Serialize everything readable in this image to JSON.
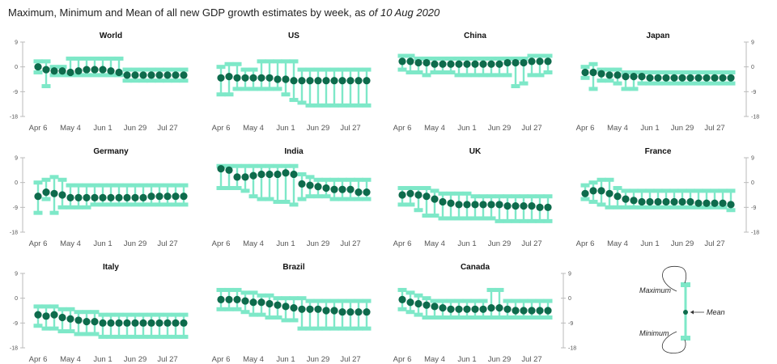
{
  "title": {
    "text": "Maximum, Minimum and Mean of all new GDP growth estimates by week, as",
    "date": "of 10 Aug 2020"
  },
  "colors": {
    "mean": "#0e6b4c",
    "range": "#7ee8c8",
    "axis": "#bbbbbb"
  },
  "axis": {
    "y_ticks": [
      "9",
      "0",
      "-9",
      "-18"
    ],
    "y_values": [
      9,
      0,
      -9,
      -18
    ],
    "x_ticks": [
      "Apr 6",
      "May 4",
      "Jun 1",
      "Jun 29",
      "Jul 27"
    ],
    "x_tick_weeks": [
      0,
      4,
      8,
      12,
      16
    ]
  },
  "legend": {
    "max": "Maximum",
    "min": "Minimum",
    "mean": "Mean"
  },
  "chart_data": [
    {
      "type": "range",
      "title": "World",
      "x": [
        0,
        1,
        2,
        3,
        4,
        5,
        6,
        7,
        8,
        9,
        10,
        11,
        12,
        13,
        14,
        15,
        16,
        17,
        18
      ],
      "ylim": [
        -18,
        9
      ],
      "mean": [
        0,
        -1,
        -1.5,
        -1.5,
        -2,
        -1.5,
        -1,
        -1,
        -1,
        -1.5,
        -2,
        -3,
        -3,
        -3,
        -3,
        -3,
        -3,
        -3,
        -3
      ],
      "max": [
        2,
        2,
        0,
        0,
        3,
        3,
        3,
        3,
        3,
        3,
        3,
        -1,
        -1,
        -1,
        -1,
        -1,
        -1,
        -1,
        -1
      ],
      "min": [
        -2,
        -7,
        -3,
        -3,
        -3,
        -3,
        -3,
        -3,
        -3,
        -3,
        -3,
        -5,
        -5,
        -5,
        -5,
        -5,
        -5,
        -5,
        -5
      ]
    },
    {
      "type": "range",
      "title": "US",
      "x": [
        0,
        1,
        2,
        3,
        4,
        5,
        6,
        7,
        8,
        9,
        10,
        11,
        12,
        13,
        14,
        15,
        16,
        17,
        18
      ],
      "ylim": [
        -18,
        9
      ],
      "mean": [
        -4,
        -3.5,
        -4,
        -4,
        -4,
        -4,
        -4,
        -4.5,
        -4.5,
        -5,
        -5,
        -5,
        -5,
        -5,
        -5,
        -5,
        -5,
        -5,
        -5
      ],
      "max": [
        0,
        1,
        1,
        -1,
        -1,
        2,
        2,
        2,
        2,
        2,
        -1,
        -1,
        -1,
        -1,
        -1,
        -1,
        -1,
        -1,
        -1
      ],
      "min": [
        -10,
        -10,
        -8,
        -8,
        -8,
        -8,
        -8,
        -8,
        -10,
        -12,
        -13,
        -14,
        -14,
        -14,
        -14,
        -14,
        -14,
        -14,
        -14
      ]
    },
    {
      "type": "range",
      "title": "China",
      "x": [
        0,
        1,
        2,
        3,
        4,
        5,
        6,
        7,
        8,
        9,
        10,
        11,
        12,
        13,
        14,
        15,
        16,
        17,
        18
      ],
      "ylim": [
        -18,
        9
      ],
      "mean": [
        2,
        2,
        1.5,
        1.5,
        1,
        1,
        1,
        1,
        1,
        1,
        1,
        1,
        1,
        1.5,
        1.5,
        1.5,
        2,
        2,
        2
      ],
      "max": [
        4,
        4,
        3,
        3,
        3,
        3,
        3,
        3,
        3,
        3,
        3,
        3,
        3,
        3,
        3,
        3,
        4,
        4,
        4
      ],
      "min": [
        -1,
        -2,
        -2,
        -3,
        -2,
        -2,
        -2,
        -3,
        -3,
        -3,
        -3,
        -3,
        -3,
        -3,
        -7,
        -6,
        -3,
        -3,
        -2
      ]
    },
    {
      "type": "range",
      "title": "Japan",
      "x": [
        0,
        1,
        2,
        3,
        4,
        5,
        6,
        7,
        8,
        9,
        10,
        11,
        12,
        13,
        14,
        15,
        16,
        17,
        18
      ],
      "ylim": [
        -18,
        9
      ],
      "mean": [
        -2,
        -2,
        -2.5,
        -3,
        -3,
        -3.5,
        -3.5,
        -3.5,
        -4,
        -4,
        -4,
        -4,
        -4,
        -4,
        -4,
        -4,
        -4,
        -4,
        -4
      ],
      "max": [
        0,
        1,
        -1,
        -1,
        -1,
        -2,
        -2,
        -2,
        -2,
        -2,
        -2,
        -2,
        -2,
        -2,
        -2,
        -2,
        -2,
        -2,
        -2
      ],
      "min": [
        -4,
        -8,
        -5,
        -5,
        -6,
        -8,
        -8,
        -6,
        -6,
        -6,
        -6,
        -6,
        -6,
        -6,
        -6,
        -6,
        -6,
        -6,
        -6
      ]
    },
    {
      "type": "range",
      "title": "Germany",
      "x": [
        0,
        1,
        2,
        3,
        4,
        5,
        6,
        7,
        8,
        9,
        10,
        11,
        12,
        13,
        14,
        15,
        16,
        17,
        18
      ],
      "ylim": [
        -18,
        9
      ],
      "mean": [
        -5,
        -3.5,
        -4,
        -4.5,
        -5.5,
        -5.5,
        -5.5,
        -5.5,
        -5.5,
        -5.5,
        -5.5,
        -5.5,
        -5.5,
        -5.5,
        -5,
        -5,
        -5,
        -5,
        -5
      ],
      "max": [
        0,
        1,
        2,
        1,
        -1,
        -1,
        -1,
        -1,
        -1,
        -1,
        -1,
        -1,
        -1,
        -1,
        -1,
        -1,
        -1,
        -1,
        -1
      ],
      "min": [
        -11,
        -6,
        -11,
        -9,
        -9,
        -9,
        -9,
        -8,
        -8,
        -8,
        -8,
        -8,
        -8,
        -8,
        -8,
        -8,
        -8,
        -8,
        -8
      ]
    },
    {
      "type": "range",
      "title": "India",
      "x": [
        0,
        1,
        2,
        3,
        4,
        5,
        6,
        7,
        8,
        9,
        10,
        11,
        12,
        13,
        14,
        15,
        16,
        17,
        18
      ],
      "ylim": [
        -18,
        9
      ],
      "mean": [
        5,
        4.5,
        2,
        2,
        2.5,
        3,
        3,
        3,
        3.5,
        3,
        -0.5,
        -1,
        -1.5,
        -2,
        -2.5,
        -2.5,
        -2.5,
        -3.5,
        -3.5
      ],
      "max": [
        6,
        6,
        6,
        6,
        6,
        6,
        6,
        6,
        6,
        6,
        3,
        2,
        1,
        1,
        1,
        1,
        1,
        1,
        1
      ],
      "min": [
        -2,
        -2,
        -2,
        -3,
        -5,
        -6,
        -6,
        -7,
        -7,
        -8,
        -6,
        -5,
        -5,
        -5,
        -6,
        -6,
        -6,
        -6,
        -6
      ]
    },
    {
      "type": "range",
      "title": "UK",
      "x": [
        0,
        1,
        2,
        3,
        4,
        5,
        6,
        7,
        8,
        9,
        10,
        11,
        12,
        13,
        14,
        15,
        16,
        17,
        18
      ],
      "ylim": [
        -18,
        9
      ],
      "mean": [
        -4.5,
        -4,
        -4.5,
        -5,
        -6,
        -7,
        -7.5,
        -8,
        -8,
        -8,
        -8,
        -8,
        -8,
        -8.5,
        -8.5,
        -8.5,
        -8.5,
        -9,
        -9
      ],
      "max": [
        -2,
        -2,
        -2,
        -2,
        -3,
        -4,
        -4,
        -4,
        -4,
        -5,
        -5,
        -5,
        -5,
        -5,
        -5,
        -5,
        -5,
        -5,
        -5
      ],
      "min": [
        -8,
        -8,
        -10,
        -12,
        -12,
        -13,
        -13,
        -13,
        -13,
        -13,
        -13,
        -13,
        -14,
        -14,
        -14,
        -14,
        -14,
        -14,
        -14
      ]
    },
    {
      "type": "range",
      "title": "France",
      "x": [
        0,
        1,
        2,
        3,
        4,
        5,
        6,
        7,
        8,
        9,
        10,
        11,
        12,
        13,
        14,
        15,
        16,
        17,
        18
      ],
      "ylim": [
        -18,
        9
      ],
      "mean": [
        -4,
        -3,
        -3,
        -4,
        -5,
        -6,
        -6.5,
        -7,
        -7,
        -7,
        -7,
        -7,
        -7,
        -7,
        -7.5,
        -7.5,
        -7.5,
        -7.5,
        -8
      ],
      "max": [
        -1,
        0,
        1,
        1,
        -2,
        -3,
        -3,
        -3,
        -3,
        -3,
        -3,
        -3,
        -3,
        -3,
        -3,
        -3,
        -3,
        -3,
        -3
      ],
      "min": [
        -6,
        -7,
        -8,
        -9,
        -9,
        -9,
        -9,
        -9,
        -9,
        -9,
        -9,
        -9,
        -9,
        -9,
        -9,
        -9,
        -9,
        -9,
        -10
      ]
    },
    {
      "type": "range",
      "title": "Italy",
      "x": [
        0,
        1,
        2,
        3,
        4,
        5,
        6,
        7,
        8,
        9,
        10,
        11,
        12,
        13,
        14,
        15,
        16,
        17,
        18
      ],
      "ylim": [
        -18,
        9
      ],
      "mean": [
        -6,
        -6.5,
        -6,
        -7,
        -7.5,
        -8,
        -8.5,
        -8.5,
        -9,
        -9,
        -9,
        -9,
        -9,
        -9,
        -9,
        -9,
        -9,
        -9,
        -9
      ],
      "max": [
        -3,
        -3,
        -3,
        -4,
        -4,
        -5,
        -5,
        -5,
        -6,
        -6,
        -6,
        -6,
        -6,
        -6,
        -6,
        -6,
        -6,
        -6,
        -6
      ],
      "min": [
        -10,
        -11,
        -11,
        -12,
        -12,
        -13,
        -13,
        -13,
        -14,
        -14,
        -14,
        -14,
        -14,
        -14,
        -14,
        -14,
        -14,
        -14,
        -14
      ]
    },
    {
      "type": "range",
      "title": "Brazil",
      "x": [
        0,
        1,
        2,
        3,
        4,
        5,
        6,
        7,
        8,
        9,
        10,
        11,
        12,
        13,
        14,
        15,
        16,
        17,
        18
      ],
      "ylim": [
        -18,
        9
      ],
      "mean": [
        -0.5,
        -0.5,
        -0.5,
        -1,
        -1.5,
        -1.5,
        -2,
        -2.5,
        -3,
        -3.5,
        -4,
        -4,
        -4,
        -4.5,
        -4.5,
        -5,
        -5,
        -5,
        -5
      ],
      "max": [
        3,
        3,
        3,
        2,
        2,
        1,
        1,
        0,
        0,
        0,
        0,
        -1,
        -1,
        -1,
        -1,
        -1,
        -1,
        -1,
        -1
      ],
      "min": [
        -4,
        -4,
        -4,
        -5,
        -6,
        -6,
        -7,
        -7,
        -8,
        -8,
        -11,
        -11,
        -11,
        -11,
        -11,
        -11,
        -11,
        -11,
        -11
      ]
    },
    {
      "type": "range",
      "title": "Canada",
      "x": [
        0,
        1,
        2,
        3,
        4,
        5,
        6,
        7,
        8,
        9,
        10,
        11,
        12,
        13,
        14,
        15,
        16,
        17,
        18
      ],
      "ylim": [
        -18,
        9
      ],
      "mean": [
        -0.5,
        -1.5,
        -2,
        -2.5,
        -3,
        -3.5,
        -4,
        -4,
        -4,
        -4,
        -4,
        -3.5,
        -3.5,
        -4,
        -4.5,
        -4.5,
        -4.5,
        -4.5,
        -4.5
      ],
      "max": [
        3,
        2,
        1,
        0,
        -1,
        -1,
        -1,
        -1,
        -1,
        -1,
        -1,
        3,
        3,
        -1,
        -1,
        -1,
        -1,
        -1,
        -1
      ],
      "min": [
        -4,
        -5,
        -6,
        -7,
        -7,
        -7,
        -7,
        -7,
        -7,
        -7,
        -7,
        -7,
        -7,
        -7,
        -7,
        -7,
        -7,
        -7,
        -7
      ]
    }
  ]
}
